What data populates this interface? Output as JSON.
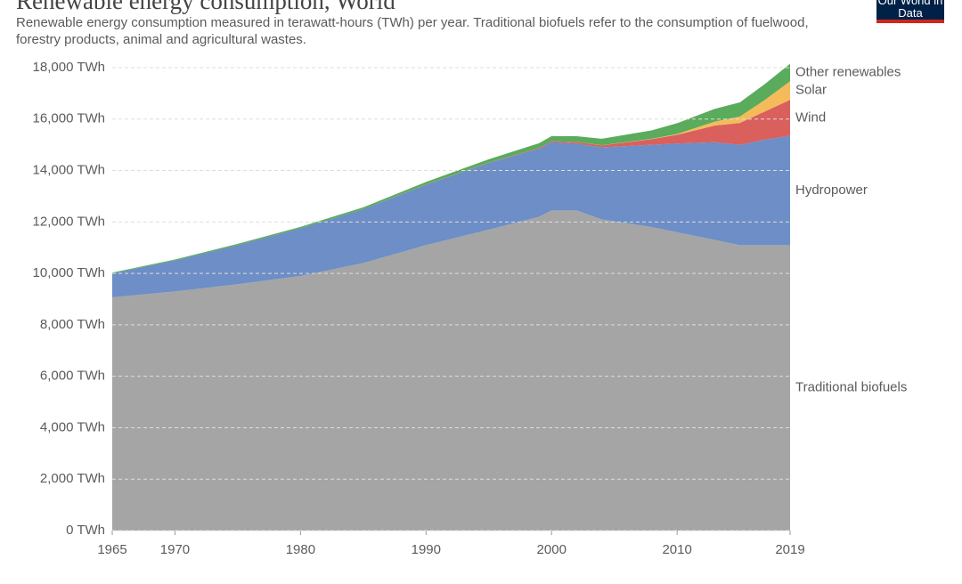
{
  "chart_data": {
    "type": "stacked_area",
    "title": "Renewable energy consumption, World",
    "subtitle": "Renewable energy consumption measured in terawatt-hours (TWh) per year. Traditional biofuels refer to the consumption of fuelwood, forestry products, animal and agricultural wastes.",
    "logo": "Our World in Data",
    "x": [
      1965,
      1970,
      1975,
      1980,
      1985,
      1990,
      1995,
      1999,
      2000,
      2002,
      2004,
      2008,
      2010,
      2013,
      2015,
      2017,
      2019
    ],
    "series": [
      {
        "name": "Traditional biofuels",
        "color": "#a5a5a5",
        "label_color": "#777777",
        "values": [
          9070,
          9300,
          9580,
          9900,
          10400,
          11100,
          11700,
          12200,
          12450,
          12450,
          12100,
          11800,
          11600,
          11300,
          11100,
          11100,
          11100
        ]
      },
      {
        "name": "Hydropower",
        "color": "#6d8ec6",
        "label_color": "#3f6bb0",
        "values": [
          930,
          1200,
          1520,
          1850,
          2100,
          2350,
          2600,
          2650,
          2650,
          2600,
          2800,
          3200,
          3450,
          3800,
          3900,
          4100,
          4250
        ]
      },
      {
        "name": "Wind",
        "color": "#d9605d",
        "label_color": "#c63b37",
        "values": [
          0,
          0,
          0,
          0,
          0,
          5,
          10,
          30,
          40,
          60,
          80,
          220,
          340,
          650,
          850,
          1100,
          1400
        ]
      },
      {
        "name": "Solar",
        "color": "#f5bb5a",
        "label_color": "#e7a52f",
        "values": [
          0,
          0,
          0,
          0,
          0,
          0,
          0,
          0,
          0,
          5,
          5,
          15,
          30,
          150,
          250,
          450,
          720
        ]
      },
      {
        "name": "Other renewables",
        "color": "#5aab5c",
        "label_color": "#3d993f",
        "values": [
          30,
          40,
          50,
          60,
          70,
          100,
          130,
          180,
          200,
          220,
          250,
          330,
          420,
          500,
          550,
          620,
          680
        ]
      }
    ],
    "xlim": [
      1965,
      2019
    ],
    "xticks": [
      1965,
      1970,
      1980,
      1990,
      2000,
      2010,
      2019
    ],
    "ylim": [
      0,
      18000
    ],
    "yticks": [
      {
        "value": 0,
        "label": "0 TWh"
      },
      {
        "value": 2000,
        "label": "2,000 TWh"
      },
      {
        "value": 4000,
        "label": "4,000 TWh"
      },
      {
        "value": 6000,
        "label": "6,000 TWh"
      },
      {
        "value": 8000,
        "label": "8,000 TWh"
      },
      {
        "value": 10000,
        "label": "10,000 TWh"
      },
      {
        "value": 12000,
        "label": "12,000 TWh"
      },
      {
        "value": 14000,
        "label": "14,000 TWh"
      },
      {
        "value": 16000,
        "label": "16,000 TWh"
      },
      {
        "value": 18000,
        "label": "18,000 TWh"
      }
    ],
    "grid": true
  }
}
